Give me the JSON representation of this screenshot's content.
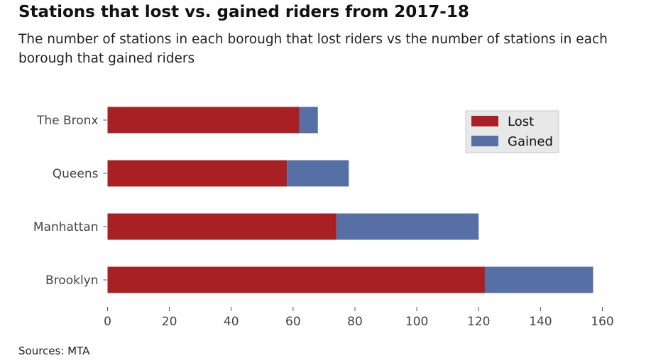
{
  "title": "Stations that lost vs. gained riders from 2017-18",
  "subtitle": "The number of stations in each borough that lost riders vs the number of stations in each borough that gained riders",
  "source": "Sources: MTA",
  "colors": {
    "lost": "#a82024",
    "gained": "#5670a5",
    "legend_bg": "#e8e8e8"
  },
  "chart_data": {
    "type": "bar",
    "orientation": "horizontal",
    "stacked": true,
    "categories": [
      "Brooklyn",
      "Manhattan",
      "Queens",
      "The Bronx"
    ],
    "series": [
      {
        "name": "Lost",
        "values": [
          122,
          74,
          58,
          62
        ]
      },
      {
        "name": "Gained",
        "values": [
          35,
          46,
          20,
          6
        ]
      }
    ],
    "xlim": [
      0,
      160
    ],
    "xticks": [
      0,
      20,
      40,
      60,
      80,
      100,
      120,
      140,
      160
    ],
    "grid": false,
    "legend_position": "top-right"
  }
}
